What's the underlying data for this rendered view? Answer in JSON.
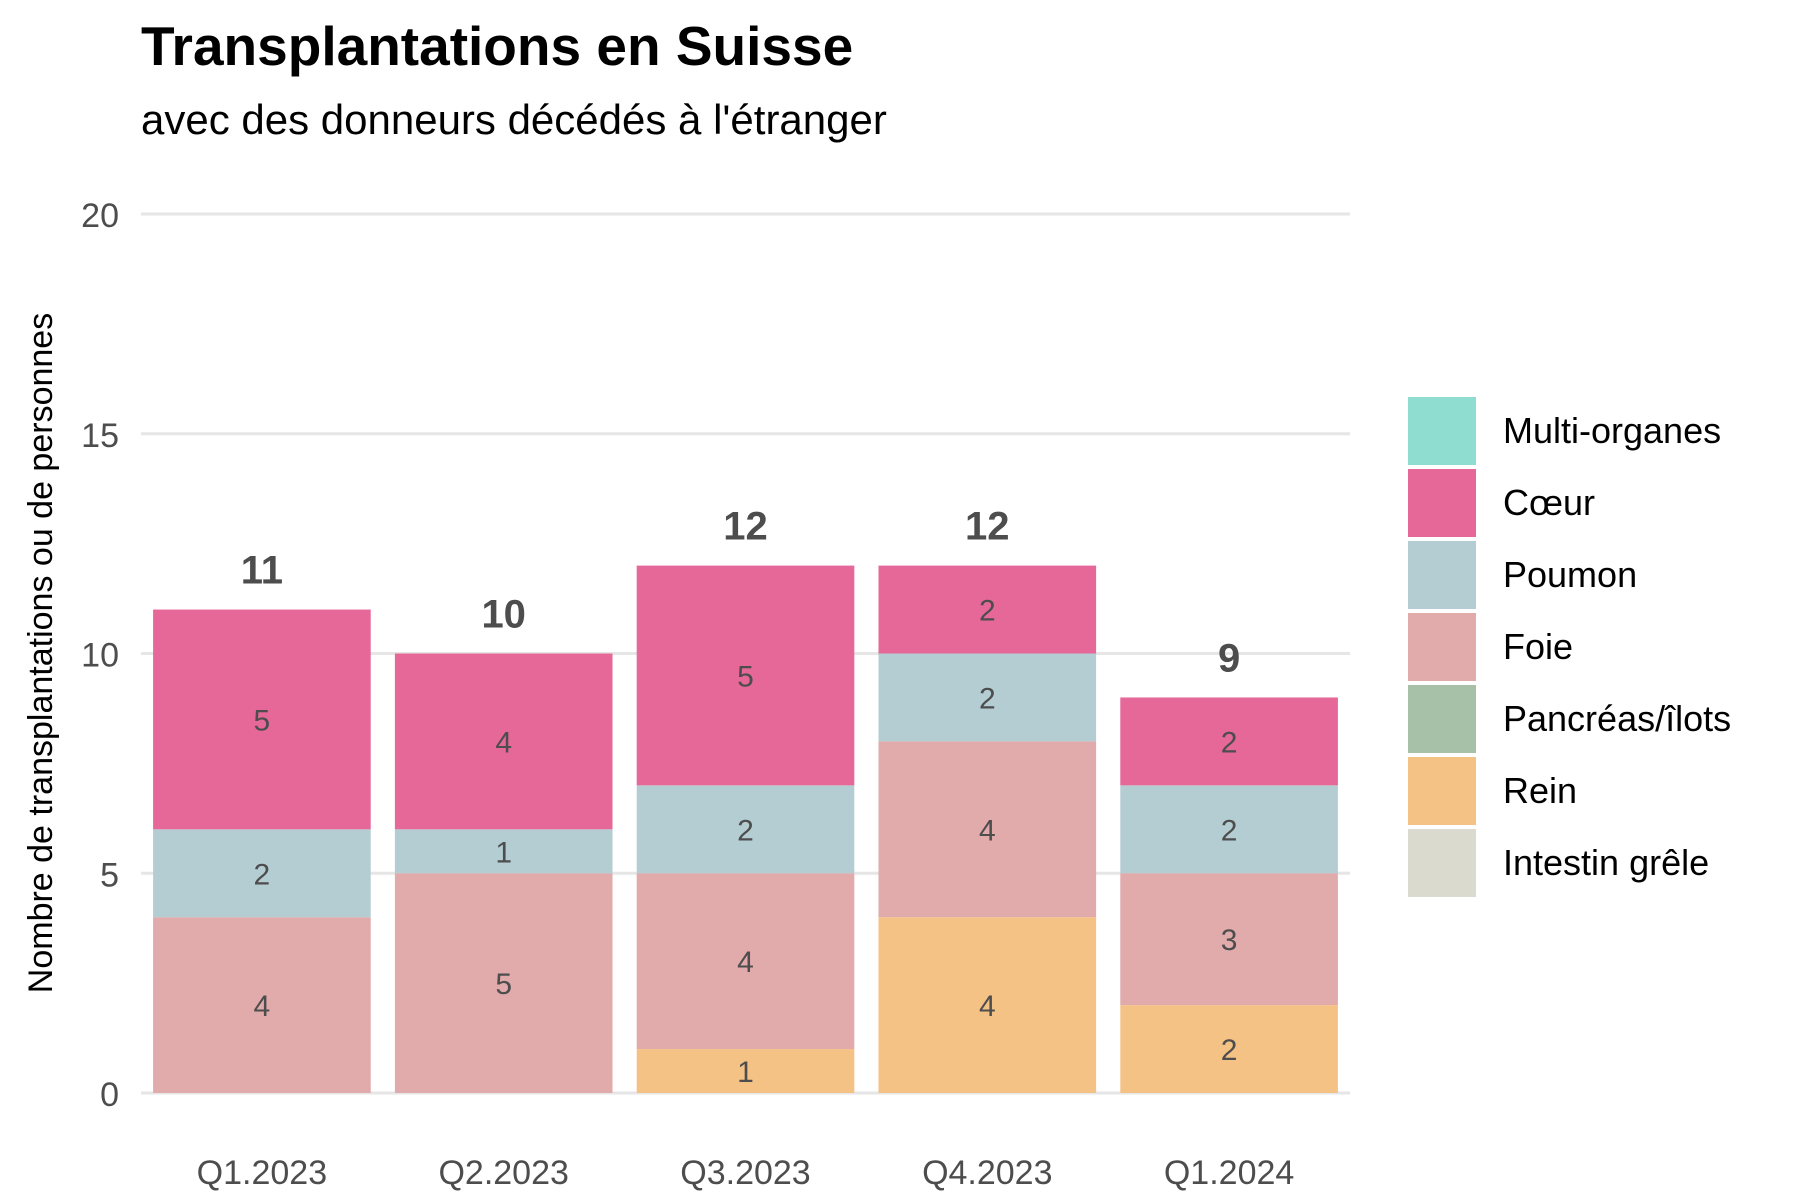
{
  "chart_data": {
    "type": "bar",
    "stacked": true,
    "title": "Transplantations en Suisse",
    "subtitle": "avec des donneurs décédés à l'étranger",
    "ylabel": "Nombre de transplantations ou de personnes",
    "xlabel": "",
    "ylim": [
      0,
      20
    ],
    "yticks": [
      "0",
      "5",
      "10",
      "15",
      "20"
    ],
    "grid": true,
    "legend_position": "right",
    "categories": [
      "Q1.2023",
      "Q2.2023",
      "Q3.2023",
      "Q4.2023",
      "Q1.2024"
    ],
    "totals": [
      "11",
      "10",
      "12",
      "12",
      "9"
    ],
    "series": [
      {
        "name": "Rein",
        "color": "#F5C285",
        "values": [
          0,
          0,
          1,
          4,
          2
        ]
      },
      {
        "name": "Foie",
        "color": "#E1AAAB",
        "values": [
          4,
          5,
          4,
          4,
          3
        ]
      },
      {
        "name": "Poumon",
        "color": "#B4CDD2",
        "values": [
          2,
          1,
          2,
          2,
          2
        ]
      },
      {
        "name": "Cœur",
        "color": "#E56898",
        "values": [
          5,
          4,
          5,
          2,
          2
        ]
      }
    ],
    "legend": [
      {
        "name": "Multi-organes",
        "color": "#8FDDD0"
      },
      {
        "name": "Cœur",
        "color": "#E56898"
      },
      {
        "name": "Poumon",
        "color": "#B4CDD2"
      },
      {
        "name": "Foie",
        "color": "#E1AAAB"
      },
      {
        "name": "Pancréas/îlots",
        "color": "#A6C1A8"
      },
      {
        "name": "Rein",
        "color": "#F5C285"
      },
      {
        "name": "Intestin grêle",
        "color": "#DADBCE"
      }
    ]
  }
}
